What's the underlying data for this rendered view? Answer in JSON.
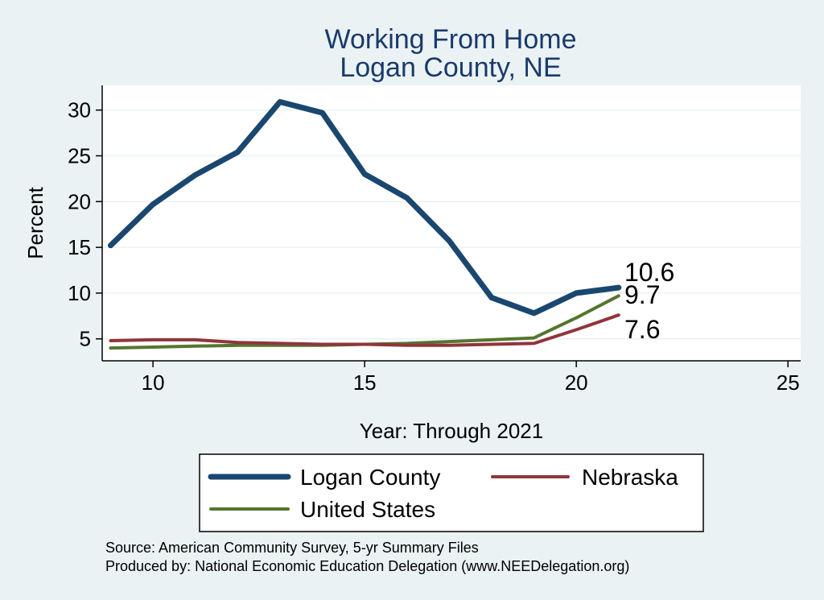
{
  "chart_data": {
    "type": "line",
    "title": "Working From Home",
    "subtitle": "Logan County, NE",
    "xlabel": "Year: Through 2021",
    "ylabel": "Percent",
    "xlim": [
      8.8,
      25.3
    ],
    "ylim": [
      2.6,
      32.7
    ],
    "xticks": [
      10,
      15,
      20,
      25
    ],
    "yticks": [
      5,
      10,
      15,
      20,
      25,
      30
    ],
    "grid": true,
    "legend_position": "bottom",
    "series": [
      {
        "name": "Logan County",
        "color": "#1A476F",
        "x": [
          9,
          10,
          11,
          12,
          13,
          14,
          15,
          16,
          17,
          18,
          19,
          20,
          21
        ],
        "values": [
          15.2,
          19.7,
          22.9,
          25.4,
          30.9,
          29.7,
          23.0,
          20.4,
          15.7,
          9.5,
          7.8,
          10.0,
          10.6
        ],
        "end_label": "10.6"
      },
      {
        "name": "Nebraska",
        "color": "#90353B",
        "x": [
          9,
          10,
          11,
          12,
          13,
          14,
          15,
          16,
          17,
          18,
          19,
          20,
          21
        ],
        "values": [
          4.8,
          4.9,
          4.9,
          4.6,
          4.5,
          4.4,
          4.4,
          4.3,
          4.3,
          4.4,
          4.5,
          6.0,
          7.6
        ],
        "end_label": "7.6"
      },
      {
        "name": "United States",
        "color": "#55752F",
        "x": [
          9,
          10,
          11,
          12,
          13,
          14,
          15,
          16,
          17,
          18,
          19,
          20,
          21
        ],
        "values": [
          4.0,
          4.1,
          4.2,
          4.3,
          4.3,
          4.3,
          4.4,
          4.5,
          4.7,
          4.9,
          5.1,
          7.3,
          9.7
        ],
        "end_label": "9.7"
      }
    ],
    "notes": [
      "Source: American Community Survey, 5-yr Summary Files",
      "Produced by: National Economic Education Delegation (www.NEEDelegation.org)"
    ]
  }
}
